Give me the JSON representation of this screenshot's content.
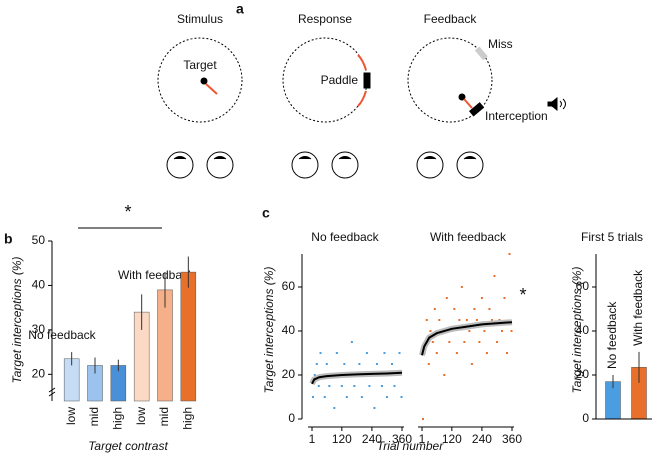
{
  "panel_labels": [
    "a",
    "b",
    "c"
  ],
  "panel_a": {
    "titles": [
      "Stimulus",
      "Response",
      "Feedback"
    ],
    "labels": [
      "Target",
      "Paddle",
      "Miss",
      "Interception"
    ]
  },
  "chart_data": [
    {
      "type": "bar",
      "categories": [
        "low",
        "mid",
        "high",
        "low",
        "mid",
        "high"
      ],
      "values": [
        23.5,
        22,
        22,
        34,
        39,
        43
      ],
      "errors": [
        1.5,
        1.8,
        1.3,
        4,
        4,
        3.5
      ],
      "colors": [
        "#c6dcf5",
        "#9cc3ee",
        "#4a90d9",
        "#fbd9c4",
        "#f5b08a",
        "#e8702a"
      ],
      "ylim": [
        14,
        50
      ],
      "yticks": [
        20,
        30,
        40,
        50
      ],
      "xlabel": "Target contrast",
      "ylabel": "Target interceptions (%)",
      "annotations": [
        "No feedback",
        "With feedback",
        "*"
      ]
    },
    {
      "type": "scatter",
      "title": "No feedback",
      "xlabel": "Trial number",
      "ylabel": "Target interceptions (%)",
      "xlim": [
        1,
        360
      ],
      "xticks": [
        1,
        120,
        240,
        360
      ],
      "ylim": [
        0,
        75
      ],
      "yticks": [
        0,
        20,
        40,
        60
      ],
      "series": [
        {
          "color": "#4a9de0",
          "x": [
            5,
            12,
            20,
            28,
            35,
            44,
            52,
            60,
            70,
            80,
            90,
            100,
            110,
            120,
            130,
            140,
            150,
            160,
            170,
            180,
            190,
            200,
            210,
            220,
            230,
            240,
            250,
            260,
            270,
            280,
            290,
            300,
            310,
            320,
            330,
            340,
            350,
            358
          ],
          "values": [
            10,
            20,
            25,
            15,
            30,
            20,
            10,
            25,
            15,
            20,
            5,
            30,
            20,
            15,
            25,
            10,
            20,
            35,
            15,
            20,
            25,
            10,
            20,
            30,
            15,
            20,
            5,
            25,
            20,
            15,
            30,
            10,
            20,
            25,
            15,
            20,
            30,
            10
          ]
        }
      ],
      "fit": {
        "color": "#000000",
        "x": [
          1,
          10,
          30,
          60,
          120,
          180,
          240,
          300,
          360
        ],
        "values": [
          16,
          18,
          19,
          19.5,
          20,
          20.3,
          20.5,
          20.7,
          21
        ]
      }
    },
    {
      "type": "scatter",
      "title": "With feedback",
      "annotation": "*",
      "xlim": [
        1,
        360
      ],
      "xticks": [
        1,
        120,
        240,
        360
      ],
      "ylim": [
        0,
        75
      ],
      "series": [
        {
          "color": "#e8702a",
          "x": [
            5,
            12,
            20,
            28,
            35,
            44,
            52,
            60,
            70,
            80,
            90,
            100,
            110,
            120,
            130,
            140,
            150,
            160,
            170,
            180,
            190,
            200,
            210,
            220,
            230,
            240,
            250,
            260,
            270,
            280,
            290,
            300,
            310,
            320,
            330,
            340,
            350,
            358
          ],
          "values": [
            0,
            30,
            45,
            25,
            40,
            35,
            50,
            30,
            45,
            40,
            20,
            55,
            35,
            40,
            50,
            30,
            45,
            60,
            35,
            45,
            40,
            25,
            50,
            45,
            35,
            55,
            40,
            30,
            50,
            45,
            65,
            35,
            45,
            40,
            55,
            30,
            75,
            40
          ]
        }
      ],
      "fit": {
        "color": "#000000",
        "x": [
          1,
          10,
          30,
          60,
          120,
          180,
          240,
          300,
          360
        ],
        "values": [
          29,
          33,
          37,
          39,
          41,
          42,
          43,
          43.5,
          44
        ]
      }
    },
    {
      "type": "bar",
      "title": "First 5 trials",
      "ylabel": "Target interceptions (%)",
      "categories": [
        "No feedback",
        "With feedback"
      ],
      "values": [
        17,
        23.5
      ],
      "errors": [
        3,
        7
      ],
      "colors": [
        "#4a9de0",
        "#e8702a"
      ],
      "ylim": [
        0,
        75
      ],
      "yticks": [
        0,
        20,
        40,
        60
      ]
    }
  ]
}
